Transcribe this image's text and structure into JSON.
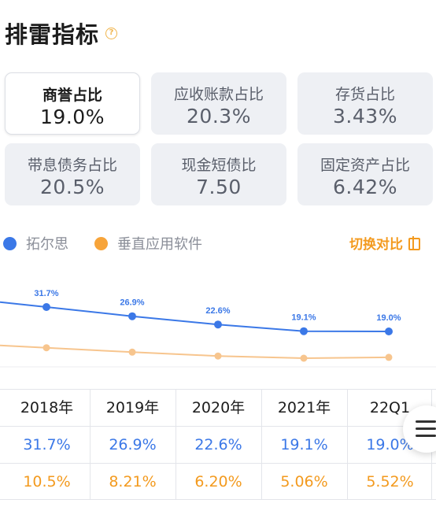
{
  "header": {
    "title": "排雷指标",
    "help_icon": "question-circle-icon"
  },
  "metrics": [
    {
      "label": "商誉占比",
      "value": "19.0%",
      "active": true
    },
    {
      "label": "应收账款占比",
      "value": "20.3%"
    },
    {
      "label": "存货占比",
      "value": "3.43%"
    },
    {
      "label": "带息债务占比",
      "value": "20.5%"
    },
    {
      "label": "现金短债比",
      "value": "7.50"
    },
    {
      "label": "固定资产占比",
      "value": "6.42%"
    }
  ],
  "legend": {
    "company": {
      "name": "拓尔思",
      "color": "#3b78e7"
    },
    "industry": {
      "name": "垂直应用软件",
      "color": "#f7a43a"
    },
    "switch_label": "切换对比",
    "switch_icon": "compare-icon"
  },
  "chart_data": {
    "type": "line",
    "categories": [
      "2018年",
      "2019年",
      "2020年",
      "2021年",
      "22Q1"
    ],
    "series": [
      {
        "name": "拓尔思",
        "values": [
          31.7,
          26.9,
          22.6,
          19.1,
          19.0
        ],
        "labels": [
          "31.7%",
          "26.9%",
          "22.6%",
          "19.1%",
          "19.0%"
        ],
        "color": "#3b78e7"
      },
      {
        "name": "垂直应用软件",
        "values": [
          10.5,
          8.21,
          6.2,
          5.06,
          5.52
        ],
        "color": "#f7c58e"
      }
    ],
    "grid": false
  },
  "table": {
    "headers": [
      "2018年",
      "2019年",
      "2020年",
      "2021年",
      "22Q1"
    ],
    "rows": [
      {
        "values": [
          "31.7%",
          "26.9%",
          "22.6%",
          "19.1%",
          "19.0%"
        ],
        "color": "#3b78e7"
      },
      {
        "values": [
          "10.5%",
          "8.21%",
          "6.20%",
          "5.06%",
          "5.52%"
        ],
        "color": "#f39a1e"
      }
    ]
  },
  "fab": {
    "icon": "menu-lines-icon"
  }
}
